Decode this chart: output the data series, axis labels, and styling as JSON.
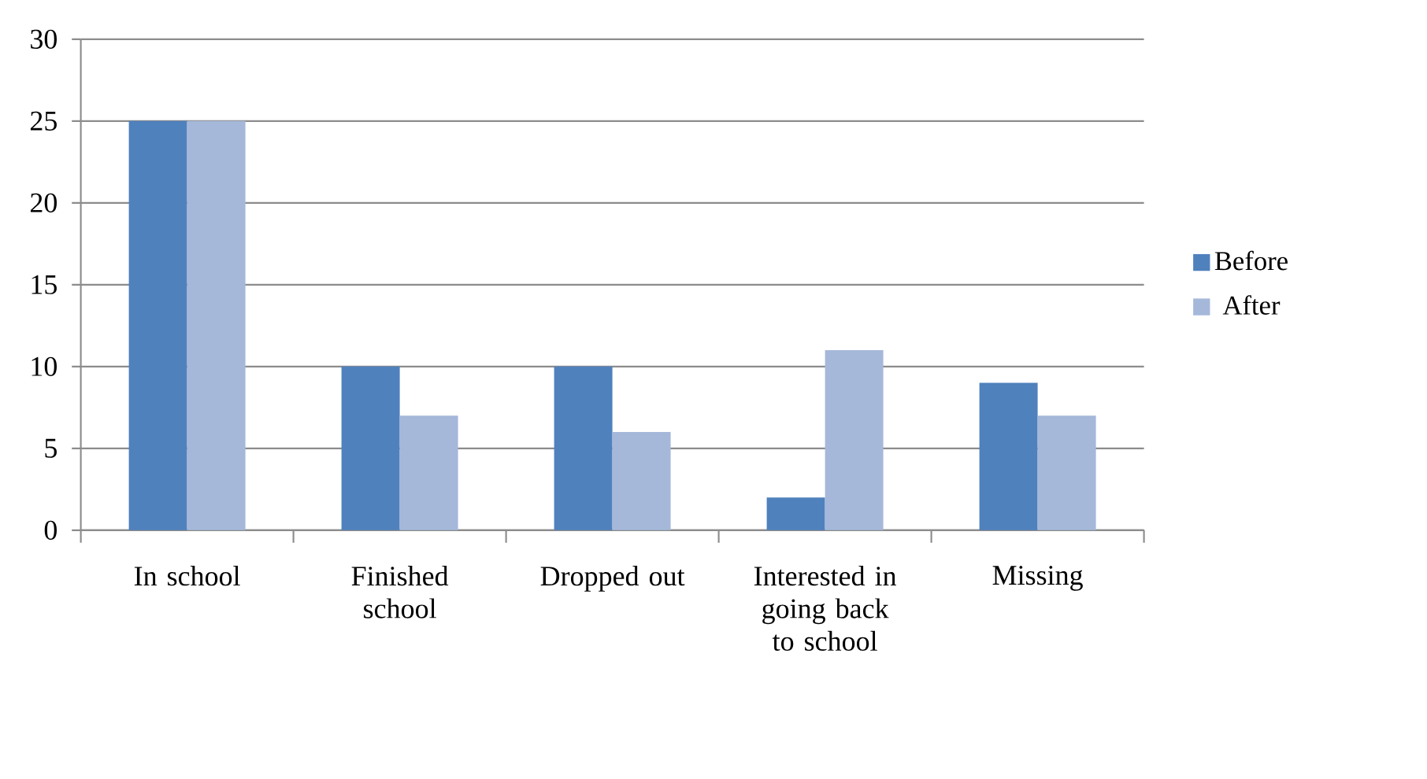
{
  "chart_data": {
    "type": "bar",
    "categories": [
      "In school",
      "Finished school",
      "Dropped out",
      "Interested in going back to school",
      "Missing"
    ],
    "series": [
      {
        "name": "Before",
        "color": "#4f81bd",
        "values": [
          25,
          10,
          10,
          2,
          9
        ]
      },
      {
        "name": "After",
        "color": "#a5b8da",
        "values": [
          25,
          7,
          6,
          11,
          7
        ]
      }
    ],
    "ylim": [
      0,
      30
    ],
    "yticks": [
      0,
      5,
      10,
      15,
      20,
      25,
      30
    ],
    "grid": "y",
    "legend": "right"
  }
}
